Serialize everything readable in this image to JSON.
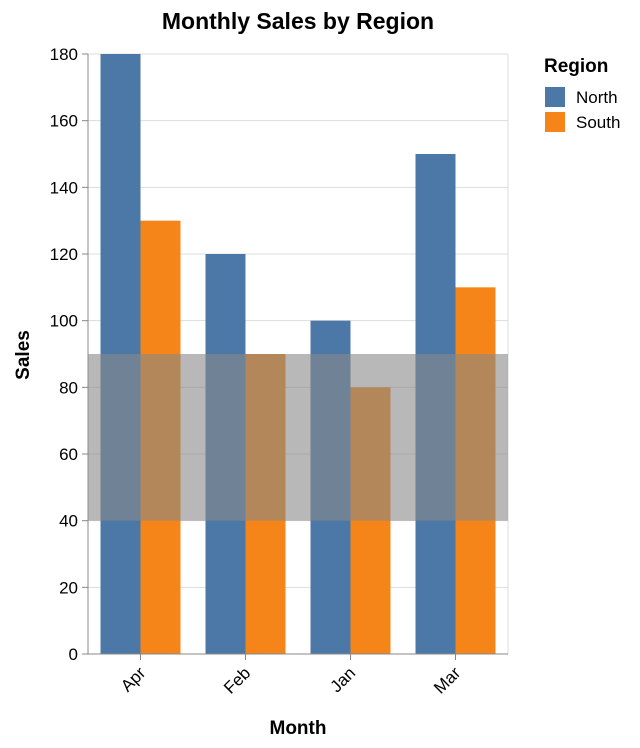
{
  "chart_data": {
    "type": "bar",
    "title": "Monthly Sales by Region",
    "xlabel": "Month",
    "ylabel": "Sales",
    "categories": [
      "Apr",
      "Feb",
      "Jan",
      "Mar"
    ],
    "series": [
      {
        "name": "North",
        "color": "#4c78a8",
        "values": [
          180,
          120,
          100,
          150
        ]
      },
      {
        "name": "South",
        "color": "#f58518",
        "values": [
          130,
          90,
          80,
          110
        ]
      }
    ],
    "ylim": [
      0,
      180
    ],
    "yticks": [
      0,
      20,
      40,
      60,
      80,
      100,
      120,
      140,
      160,
      180
    ],
    "grid": true,
    "legend": {
      "title": "Region",
      "placement": "right"
    },
    "highlight_band": {
      "y_from": 40,
      "y_to": 90,
      "color": "#888888",
      "opacity": 0.6
    }
  }
}
